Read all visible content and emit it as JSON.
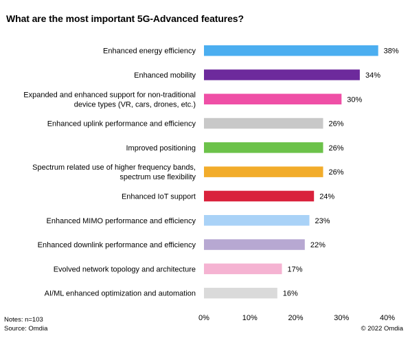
{
  "chart_data": {
    "type": "bar",
    "orientation": "horizontal",
    "title": "What are the most important 5G-Advanced features?",
    "categories": [
      [
        "Enhanced energy efficiency"
      ],
      [
        "Enhanced mobility"
      ],
      [
        "Expanded and enhanced support for non-traditional",
        "device types (VR, cars, drones, etc.)"
      ],
      [
        "Enhanced uplink performance and efficiency"
      ],
      [
        "Improved positioning"
      ],
      [
        "Spectrum related use of higher frequency bands,",
        "spectrum use flexibility"
      ],
      [
        "Enhanced IoT support"
      ],
      [
        "Enhanced MIMO performance and efficiency"
      ],
      [
        "Enhanced downlink performance and efficiency"
      ],
      [
        "Evolved network topology and architecture"
      ],
      [
        "AI/ML enhanced optimization and automation"
      ]
    ],
    "values": [
      38,
      34,
      30,
      26,
      26,
      26,
      24,
      23,
      22,
      17,
      16
    ],
    "value_labels": [
      "38%",
      "34%",
      "30%",
      "26%",
      "26%",
      "26%",
      "24%",
      "23%",
      "22%",
      "17%",
      "16%"
    ],
    "colors": [
      "#4baef0",
      "#6d2a9c",
      "#ef4fa6",
      "#c8c8c8",
      "#6cc24a",
      "#f2ac2b",
      "#d9223c",
      "#a9d2f7",
      "#b7a8d2",
      "#f5b3d2",
      "#dadada"
    ],
    "xlim": [
      0,
      40
    ],
    "xticks": [
      0,
      10,
      20,
      30,
      40
    ],
    "xtick_labels": [
      "0%",
      "10%",
      "20%",
      "30%",
      "40%"
    ],
    "grid": false,
    "legend": "none"
  },
  "notes": "Notes: n=103",
  "source": "Source:  Omdia",
  "copyright": "© 2022 Omdia"
}
